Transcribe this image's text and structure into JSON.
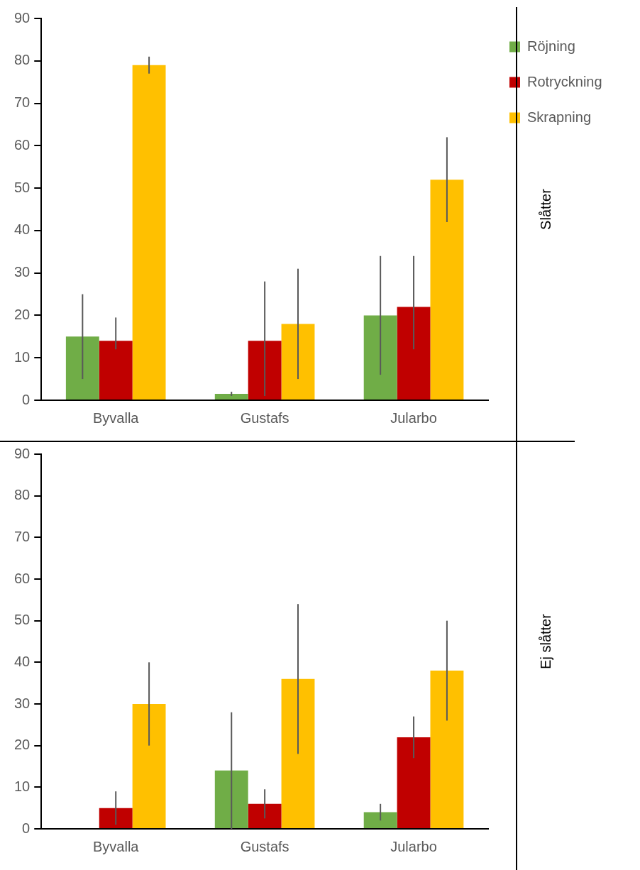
{
  "chart_data": [
    {
      "type": "bar",
      "y2label": "Slåtter",
      "categories": [
        "Byvalla",
        "Gustafs",
        "Jularbo"
      ],
      "ylim": [
        0,
        90
      ],
      "yticks": [
        0,
        10,
        20,
        30,
        40,
        50,
        60,
        70,
        80,
        90
      ],
      "grid": false,
      "legend": "right",
      "series": [
        {
          "name": "Röjning",
          "color": "#70ad47",
          "values": [
            15,
            1.5,
            20
          ],
          "errors": [
            [
              5,
              25
            ],
            [
              1,
              2
            ],
            [
              6,
              34
            ]
          ]
        },
        {
          "name": "Rotryckning",
          "color": "#c00000",
          "values": [
            14,
            14,
            22
          ],
          "errors": [
            [
              12,
              19.5
            ],
            [
              1,
              28
            ],
            [
              12,
              34
            ]
          ]
        },
        {
          "name": "Skrapning",
          "color": "#ffc000",
          "values": [
            79,
            18,
            52
          ],
          "errors": [
            [
              77,
              81
            ],
            [
              5,
              31
            ],
            [
              42,
              62
            ]
          ]
        }
      ]
    },
    {
      "type": "bar",
      "y2label": "Ej slåtter",
      "categories": [
        "Byvalla",
        "Gustafs",
        "Jularbo"
      ],
      "ylim": [
        0,
        90
      ],
      "yticks": [
        0,
        10,
        20,
        30,
        40,
        50,
        60,
        70,
        80,
        90
      ],
      "grid": false,
      "legend": false,
      "series": [
        {
          "color": "#70ad47",
          "values": [
            null,
            14,
            4
          ],
          "errors": [
            null,
            [
              0,
              28
            ],
            [
              2,
              6
            ]
          ]
        },
        {
          "color": "#c00000",
          "values": [
            5,
            6,
            22
          ],
          "errors": [
            [
              1,
              9
            ],
            [
              2.5,
              9.5
            ],
            [
              17,
              27
            ]
          ]
        },
        {
          "color": "#ffc000",
          "values": [
            30,
            36,
            38
          ],
          "errors": [
            [
              20,
              40
            ],
            [
              18,
              54
            ],
            [
              26,
              50
            ]
          ]
        }
      ]
    }
  ]
}
